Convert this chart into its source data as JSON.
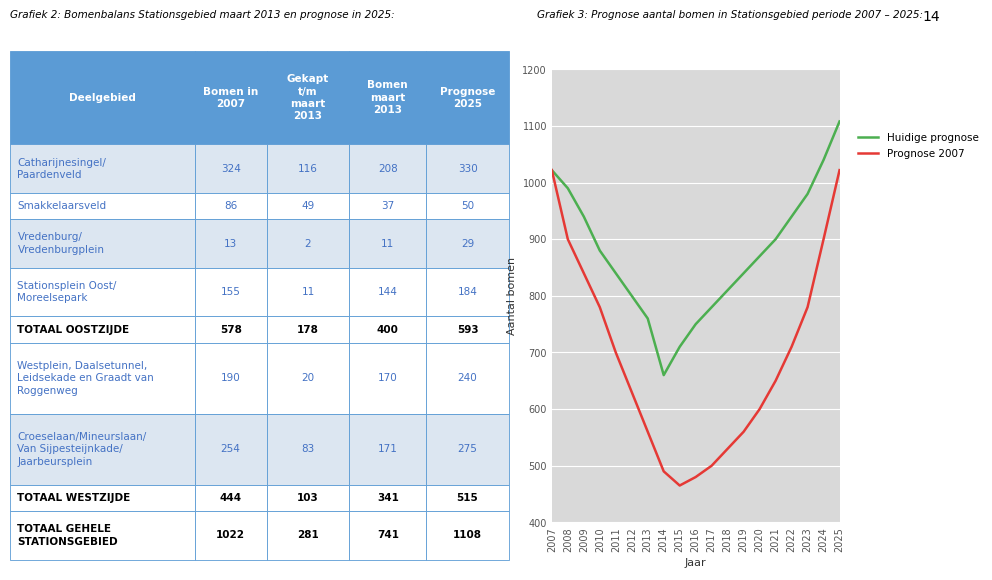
{
  "page_number": "14",
  "title_left": "Grafiek 2: Bomenbalans Stationsgebied maart 2013 en prognose in 2025:",
  "title_right": "Grafiek 3: Prognose aantal bomen in Stationsgebied periode 2007 – 2025:",
  "table": {
    "header": [
      "Deelgebied",
      "Bomen in\n2007",
      "Gekapt\nt/m\nmaart\n2013",
      "Bomen\nmaart\n2013",
      "Prognose\n2025"
    ],
    "rows": [
      [
        "Catharijnesingel/\nPaardenveld",
        "324",
        "116",
        "208",
        "330"
      ],
      [
        "Smakkelaarsveld",
        "86",
        "49",
        "37",
        "50"
      ],
      [
        "Vredenburg/\nVredenburgplein",
        "13",
        "2",
        "11",
        "29"
      ],
      [
        "Stationsplein Oost/\nMoreelsepark",
        "155",
        "11",
        "144",
        "184"
      ],
      [
        "TOTAAL OOSTZIJDE",
        "578",
        "178",
        "400",
        "593"
      ],
      [
        "Westplein, Daalsetunnel,\nLeidsekade en Graadt van\nRoggenweg",
        "190",
        "20",
        "170",
        "240"
      ],
      [
        "Croeselaan/Mineurslaan/\nVan Sijpesteijnkade/\nJaarbeursplein",
        "254",
        "83",
        "171",
        "275"
      ],
      [
        "TOTAAL WESTZIJDE",
        "444",
        "103",
        "341",
        "515"
      ],
      [
        "TOTAAL GEHELE\nSTATIONSGEBIED",
        "1022",
        "281",
        "741",
        "1108"
      ]
    ],
    "bold_rows": [
      4,
      7,
      8
    ],
    "header_color": "#5b9bd5",
    "row_border_color": "#5b9bd5",
    "header_text_color": "#ffffff",
    "data_text_color": "#4472c4",
    "alt_row_color": "#dce6f1",
    "white_row_color": "#ffffff",
    "bold_row_bg": "#ffffff"
  },
  "chart": {
    "years": [
      2007,
      2008,
      2009,
      2010,
      2011,
      2012,
      2013,
      2014,
      2015,
      2016,
      2017,
      2018,
      2019,
      2020,
      2021,
      2022,
      2023,
      2024,
      2025
    ],
    "huidige_prognose": [
      1022,
      990,
      940,
      880,
      840,
      800,
      760,
      660,
      710,
      750,
      780,
      810,
      840,
      870,
      900,
      940,
      980,
      1040,
      1108
    ],
    "prognose_2007": [
      1022,
      900,
      840,
      780,
      700,
      630,
      560,
      490,
      465,
      480,
      500,
      530,
      560,
      600,
      650,
      710,
      780,
      900,
      1022
    ],
    "ylabel": "Aantal bomen",
    "xlabel": "Jaar",
    "ylim": [
      400,
      1200
    ],
    "yticks": [
      400,
      500,
      600,
      700,
      800,
      900,
      1000,
      1100,
      1200
    ],
    "line_green": "#4CAF50",
    "line_red": "#E53935",
    "bg_color": "#d9d9d9",
    "legend_huidige": "Huidige prognose",
    "legend_prognose": "Prognose 2007"
  }
}
